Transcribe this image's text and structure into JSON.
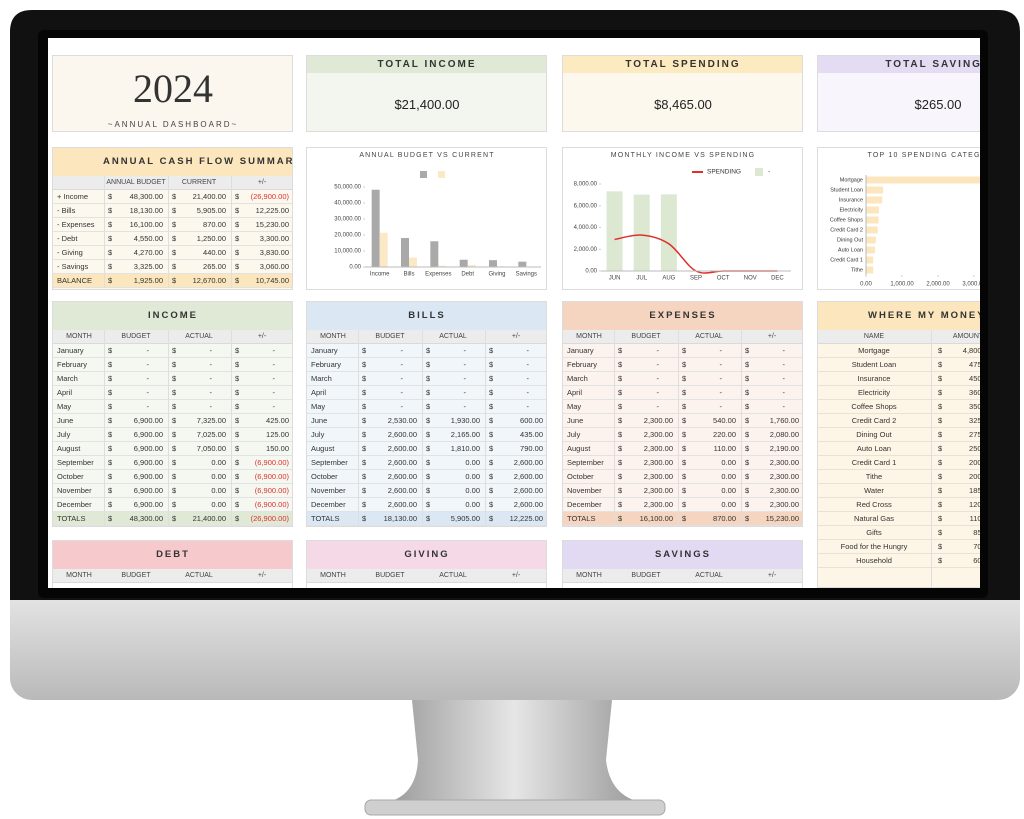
{
  "currency": "$",
  "year_card": {
    "year": "2024",
    "subtitle": "~ANNUAL DASHBOARD~"
  },
  "cards": [
    {
      "title": "TOTAL INCOME",
      "value": "$21,400.00"
    },
    {
      "title": "TOTAL SPENDING",
      "value": "$8,465.00"
    },
    {
      "title": "TOTAL SAVINGS",
      "value": "$265.00"
    }
  ],
  "cash_flow": {
    "title": "ANNUAL CASH FLOW SUMMARY",
    "header": [
      "ANNUAL BUDGET",
      "CURRENT",
      "+/-"
    ],
    "rows": [
      [
        "+ Income",
        "48,300.00",
        "21,400.00",
        "(26,900.00)"
      ],
      [
        "- Bills",
        "18,130.00",
        "5,905.00",
        "12,225.00"
      ],
      [
        "- Expenses",
        "16,100.00",
        "870.00",
        "15,230.00"
      ],
      [
        "- Debt",
        "4,550.00",
        "1,250.00",
        "3,300.00"
      ],
      [
        "- Giving",
        "4,270.00",
        "440.00",
        "3,830.00"
      ],
      [
        "- Savings",
        "3,325.00",
        "265.00",
        "3,060.00"
      ]
    ],
    "totals": [
      "BALANCE",
      "1,925.00",
      "12,670.00",
      "10,745.00"
    ]
  },
  "annual_chart": {
    "type": "bar",
    "title": "ANNUAL BUDGET VS CURRENT",
    "categories": [
      "Income",
      "Bills",
      "Expenses",
      "Debt",
      "Giving",
      "Savings"
    ],
    "series": [
      {
        "color": "#a9a9a9",
        "values": [
          48300,
          18130,
          16100,
          4550,
          4270,
          3325
        ]
      },
      {
        "color": "#fbe8c4",
        "values": [
          21400,
          5905,
          870,
          1250,
          440,
          265
        ]
      }
    ],
    "ylim": [
      0,
      50000
    ],
    "yticks": [
      {
        "value": 0,
        "label": "0.00"
      },
      {
        "value": 10000,
        "label": "10,000.00"
      },
      {
        "value": 20000,
        "label": "20,000.00"
      },
      {
        "value": 30000,
        "label": "30,000.00"
      },
      {
        "value": 40000,
        "label": "40,000.00"
      },
      {
        "value": 50000,
        "label": "50,000.00"
      }
    ],
    "grid": false
  },
  "monthly_chart": {
    "type": "bar",
    "title": "MONTHLY INCOME VS SPENDING",
    "categories": [
      "JUN",
      "JUL",
      "AUG",
      "SEP",
      "OCT",
      "NOV",
      "DEC"
    ],
    "series": [
      {
        "name": "SPENDING",
        "type": "line",
        "color": "#e0302c",
        "values": [
          2900,
          3300,
          2500,
          0,
          0,
          0,
          0
        ]
      },
      {
        "name": "-",
        "type": "bar",
        "color": "#dce8d2",
        "values": [
          7325,
          7025,
          7050,
          0,
          0,
          0,
          0
        ]
      }
    ],
    "ylim": [
      0,
      8000
    ],
    "yticks": [
      {
        "value": 0,
        "label": "0.00"
      },
      {
        "value": 2000,
        "label": "2,000.00"
      },
      {
        "value": 4000,
        "label": "4,000.00"
      },
      {
        "value": 6000,
        "label": "6,000.00"
      },
      {
        "value": 8000,
        "label": "8,000.00"
      }
    ],
    "grid": false
  },
  "top_spending_chart": {
    "type": "bar",
    "orientation": "horizontal",
    "title": "TOP 10 SPENDING CATEGORIES",
    "categories": [
      "Mortgage",
      "Student Loan",
      "Insurance",
      "Electricity",
      "Coffee Shops",
      "Credit Card 2",
      "Dining Out",
      "Auto Loan",
      "Credit Card 1",
      "Tithe"
    ],
    "values": [
      4800,
      475,
      450,
      360,
      350,
      325,
      275,
      250,
      200,
      200
    ],
    "color": "#fce6bd",
    "xlim": [
      0,
      5000
    ],
    "xticks": [
      {
        "value": 0,
        "label": "0.00"
      },
      {
        "value": 1000,
        "label": "1,000.00"
      },
      {
        "value": 2000,
        "label": "2,000.00"
      },
      {
        "value": 3000,
        "label": "3,000.00"
      },
      {
        "value": 4000,
        "label": "4,000.00"
      },
      {
        "value": 5000,
        "label": "5,000.00"
      }
    ],
    "grid": false
  },
  "income": {
    "title": "INCOME",
    "header": [
      "MONTH",
      "BUDGET",
      "ACTUAL",
      "+/-"
    ],
    "rows": [
      [
        "January",
        "-",
        "-",
        "-"
      ],
      [
        "February",
        "-",
        "-",
        "-"
      ],
      [
        "March",
        "-",
        "-",
        "-"
      ],
      [
        "April",
        "-",
        "-",
        "-"
      ],
      [
        "May",
        "-",
        "-",
        "-"
      ],
      [
        "June",
        "6,900.00",
        "7,325.00",
        "425.00"
      ],
      [
        "July",
        "6,900.00",
        "7,025.00",
        "125.00"
      ],
      [
        "August",
        "6,900.00",
        "7,050.00",
        "150.00"
      ],
      [
        "September",
        "6,900.00",
        "0.00",
        "(6,900.00)"
      ],
      [
        "October",
        "6,900.00",
        "0.00",
        "(6,900.00)"
      ],
      [
        "November",
        "6,900.00",
        "0.00",
        "(6,900.00)"
      ],
      [
        "December",
        "6,900.00",
        "0.00",
        "(6,900.00)"
      ]
    ],
    "totals": [
      "TOTALS",
      "48,300.00",
      "21,400.00",
      "(26,900.00)"
    ]
  },
  "bills": {
    "title": "BILLS",
    "header": [
      "MONTH",
      "BUDGET",
      "ACTUAL",
      "+/-"
    ],
    "rows": [
      [
        "January",
        "-",
        "-",
        "-"
      ],
      [
        "February",
        "-",
        "-",
        "-"
      ],
      [
        "March",
        "-",
        "-",
        "-"
      ],
      [
        "April",
        "-",
        "-",
        "-"
      ],
      [
        "May",
        "-",
        "-",
        "-"
      ],
      [
        "June",
        "2,530.00",
        "1,930.00",
        "600.00"
      ],
      [
        "July",
        "2,600.00",
        "2,165.00",
        "435.00"
      ],
      [
        "August",
        "2,600.00",
        "1,810.00",
        "790.00"
      ],
      [
        "September",
        "2,600.00",
        "0.00",
        "2,600.00"
      ],
      [
        "October",
        "2,600.00",
        "0.00",
        "2,600.00"
      ],
      [
        "November",
        "2,600.00",
        "0.00",
        "2,600.00"
      ],
      [
        "December",
        "2,600.00",
        "0.00",
        "2,600.00"
      ]
    ],
    "totals": [
      "TOTALS",
      "18,130.00",
      "5,905.00",
      "12,225.00"
    ]
  },
  "expenses": {
    "title": "EXPENSES",
    "header": [
      "MONTH",
      "BUDGET",
      "ACTUAL",
      "+/-"
    ],
    "rows": [
      [
        "January",
        "-",
        "-",
        "-"
      ],
      [
        "February",
        "-",
        "-",
        "-"
      ],
      [
        "March",
        "-",
        "-",
        "-"
      ],
      [
        "April",
        "-",
        "-",
        "-"
      ],
      [
        "May",
        "-",
        "-",
        "-"
      ],
      [
        "June",
        "2,300.00",
        "540.00",
        "1,760.00"
      ],
      [
        "July",
        "2,300.00",
        "220.00",
        "2,080.00"
      ],
      [
        "August",
        "2,300.00",
        "110.00",
        "2,190.00"
      ],
      [
        "September",
        "2,300.00",
        "0.00",
        "2,300.00"
      ],
      [
        "October",
        "2,300.00",
        "0.00",
        "2,300.00"
      ],
      [
        "November",
        "2,300.00",
        "0.00",
        "2,300.00"
      ],
      [
        "December",
        "2,300.00",
        "0.00",
        "2,300.00"
      ]
    ],
    "totals": [
      "TOTALS",
      "16,100.00",
      "870.00",
      "15,230.00"
    ]
  },
  "where_money": {
    "title": "WHERE MY MONEY WENT",
    "header": [
      "NAME",
      "AMOUNT"
    ],
    "rows": [
      [
        "Mortgage",
        "4,800.00"
      ],
      [
        "Student Loan",
        "475.00"
      ],
      [
        "Insurance",
        "450.00"
      ],
      [
        "Electricity",
        "360.00"
      ],
      [
        "Coffee Shops",
        "350.00"
      ],
      [
        "Credit Card 2",
        "325.00"
      ],
      [
        "Dining Out",
        "275.00"
      ],
      [
        "Auto Loan",
        "250.00"
      ],
      [
        "Credit Card 1",
        "200.00"
      ],
      [
        "Tithe",
        "200.00"
      ],
      [
        "Water",
        "185.00"
      ],
      [
        "Red Cross",
        "120.00"
      ],
      [
        "Natural Gas",
        "110.00"
      ],
      [
        "Gifts",
        "85.00"
      ],
      [
        "Food for the Hungry",
        "70.00"
      ],
      [
        "Household",
        "60.00"
      ]
    ]
  },
  "debt": {
    "title": "DEBT",
    "header": [
      "MONTH",
      "BUDGET",
      "ACTUAL",
      "+/-"
    ]
  },
  "giving": {
    "title": "GIVING",
    "header": [
      "MONTH",
      "BUDGET",
      "ACTUAL",
      "+/-"
    ]
  },
  "savings": {
    "title": "SAVINGS",
    "header": [
      "MONTH",
      "BUDGET",
      "ACTUAL",
      "+/-"
    ]
  }
}
